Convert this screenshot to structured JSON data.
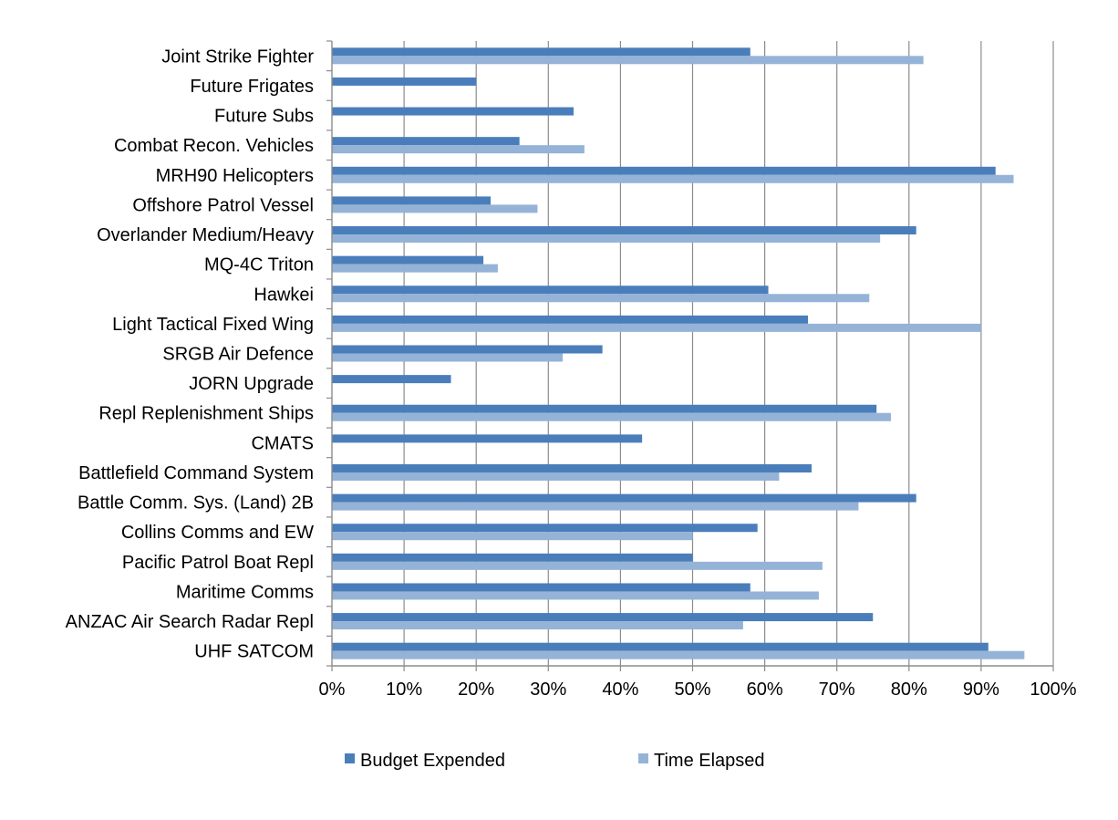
{
  "chart_data": {
    "type": "bar",
    "orientation": "horizontal",
    "categories": [
      "Joint Strike Fighter",
      "Future Frigates",
      "Future Subs",
      "Combat Recon. Vehicles",
      "MRH90 Helicopters",
      "Offshore Patrol Vessel",
      "Overlander Medium/Heavy",
      "MQ-4C Triton",
      "Hawkei",
      "Light Tactical Fixed Wing",
      "SRGB Air Defence",
      "JORN Upgrade",
      "Repl Replenishment Ships",
      "CMATS",
      "Battlefield Command System",
      "Battle Comm. Sys. (Land) 2B",
      "Collins Comms and EW",
      "Pacific Patrol Boat Repl",
      "Maritime Comms",
      "ANZAC Air Search Radar Repl",
      "UHF SATCOM"
    ],
    "series": [
      {
        "name": "Budget Expended",
        "color": "#4a7ebb",
        "values": [
          58,
          20,
          33.5,
          26,
          92,
          22,
          81,
          21,
          60.5,
          66,
          37.5,
          16.5,
          75.5,
          43,
          66.5,
          81,
          59,
          50,
          58,
          75,
          91
        ]
      },
      {
        "name": "Time Elapsed",
        "color": "#95b3d7",
        "values": [
          82,
          null,
          null,
          35,
          94.5,
          28.5,
          76,
          23,
          74.5,
          90,
          32,
          null,
          77.5,
          null,
          62,
          73,
          50,
          68,
          67.5,
          57,
          96
        ]
      }
    ],
    "xlim": [
      0,
      100
    ],
    "xticks": [
      "0%",
      "10%",
      "20%",
      "30%",
      "40%",
      "50%",
      "60%",
      "70%",
      "80%",
      "90%",
      "100%"
    ],
    "grid": true,
    "legend_position": "bottom"
  }
}
